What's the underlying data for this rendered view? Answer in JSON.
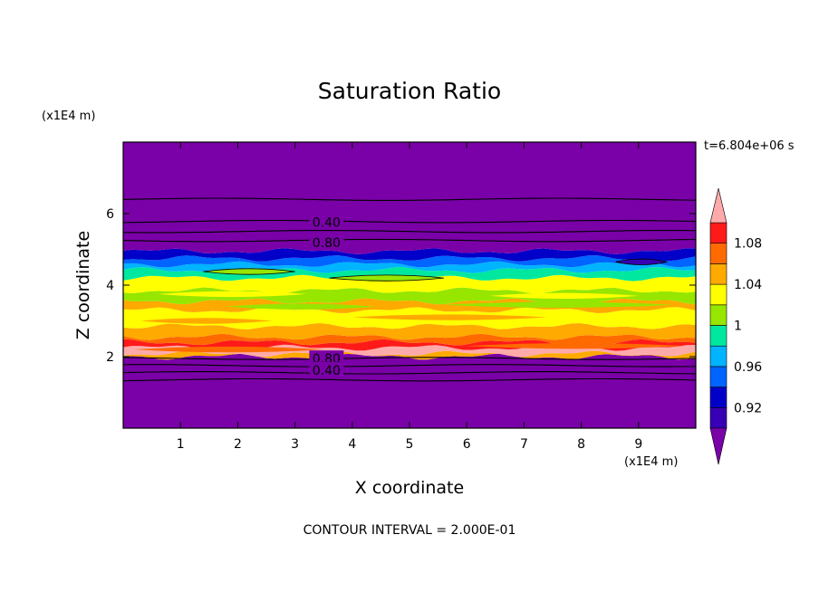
{
  "chart_data": {
    "type": "heatmap",
    "title": "Saturation Ratio",
    "xlabel": "X coordinate",
    "ylabel": "Z coordinate",
    "x_unit": "(x1E4 m)",
    "y_unit": "(x1E4 m)",
    "time_label": "t=6.804e+06 s",
    "contour_interval": "CONTOUR INTERVAL = 2.000E-01",
    "xlim": [
      0,
      10
    ],
    "ylim": [
      0,
      8
    ],
    "x_ticks": [
      1,
      2,
      3,
      4,
      5,
      6,
      7,
      8,
      9
    ],
    "y_ticks": [
      2,
      4,
      6
    ],
    "colorbar": {
      "levels": [
        0.9,
        0.92,
        0.94,
        0.96,
        0.98,
        1.0,
        1.02,
        1.04,
        1.06,
        1.08,
        1.1
      ],
      "colors": [
        "#7a00a8",
        "#3700b4",
        "#0000c8",
        "#0064ff",
        "#00b4ff",
        "#00e7a0",
        "#96e600",
        "#ffff00",
        "#ffaa00",
        "#ff6a00",
        "#ff1a1a",
        "#ffaaaa"
      ],
      "tick_labels": [
        "0.92",
        "0.96",
        "1",
        "1.04",
        "1.08"
      ],
      "tick_values": [
        0.92,
        0.96,
        1.0,
        1.04,
        1.08
      ]
    },
    "bands": [
      {
        "z_bottom": 0.0,
        "z_top": 2.0,
        "value": 0.8
      },
      {
        "z_bottom": 2.0,
        "z_top": 2.08,
        "value": 1.05
      },
      {
        "z_bottom": 2.08,
        "z_top": 2.25,
        "value": 1.12
      },
      {
        "z_bottom": 2.25,
        "z_top": 2.4,
        "value": 1.09
      },
      {
        "z_bottom": 2.4,
        "z_top": 2.55,
        "value": 1.07
      },
      {
        "z_bottom": 2.55,
        "z_top": 2.85,
        "value": 1.05
      },
      {
        "z_bottom": 2.85,
        "z_top": 3.3,
        "value": 1.03
      },
      {
        "z_bottom": 3.3,
        "z_top": 3.55,
        "value": 1.04
      },
      {
        "z_bottom": 3.55,
        "z_top": 3.85,
        "value": 1.01
      },
      {
        "z_bottom": 3.85,
        "z_top": 4.2,
        "value": 1.03
      },
      {
        "z_bottom": 4.2,
        "z_top": 4.42,
        "value": 0.99
      },
      {
        "z_bottom": 4.42,
        "z_top": 4.58,
        "value": 0.97
      },
      {
        "z_bottom": 4.58,
        "z_top": 4.75,
        "value": 0.95
      },
      {
        "z_bottom": 4.75,
        "z_top": 4.95,
        "value": 0.93
      },
      {
        "z_bottom": 4.95,
        "z_top": 8.0,
        "value": 0.5
      }
    ],
    "streaks": [
      {
        "x1": 0.3,
        "x2": 2.6,
        "z": 3.0,
        "value": 1.04
      },
      {
        "x1": 4.0,
        "x2": 7.4,
        "z": 3.1,
        "value": 1.04
      },
      {
        "x1": 1.8,
        "x2": 4.4,
        "z": 3.4,
        "value": 1.01
      },
      {
        "x1": 5.6,
        "x2": 9.6,
        "z": 3.45,
        "value": 1.01
      },
      {
        "x1": 0.6,
        "x2": 3.2,
        "z": 3.75,
        "value": 1.03
      },
      {
        "x1": 6.4,
        "x2": 9.0,
        "z": 3.7,
        "value": 1.03
      },
      {
        "x1": 1.4,
        "x2": 3.0,
        "z": 4.38,
        "value": 1.01
      },
      {
        "x1": 3.6,
        "x2": 5.6,
        "z": 4.2,
        "value": 1.01
      },
      {
        "x1": 8.6,
        "x2": 9.5,
        "z": 4.65,
        "value": 0.91
      },
      {
        "x1": 0.2,
        "x2": 3.5,
        "z": 2.2,
        "value": 1.07
      },
      {
        "x1": 6.0,
        "x2": 9.8,
        "z": 2.3,
        "value": 1.07
      }
    ],
    "contour_lines": [
      1.35,
      1.55,
      1.75,
      1.95,
      5.25,
      5.5,
      5.78,
      6.4
    ],
    "contour_labels": [
      {
        "text": "0.40",
        "x": 3.55,
        "z": 5.78
      },
      {
        "text": "0.80",
        "x": 3.55,
        "z": 5.22
      },
      {
        "text": "0.80",
        "x": 3.55,
        "z": 1.97
      },
      {
        "text": "0.40",
        "x": 3.55,
        "z": 1.65
      }
    ]
  }
}
